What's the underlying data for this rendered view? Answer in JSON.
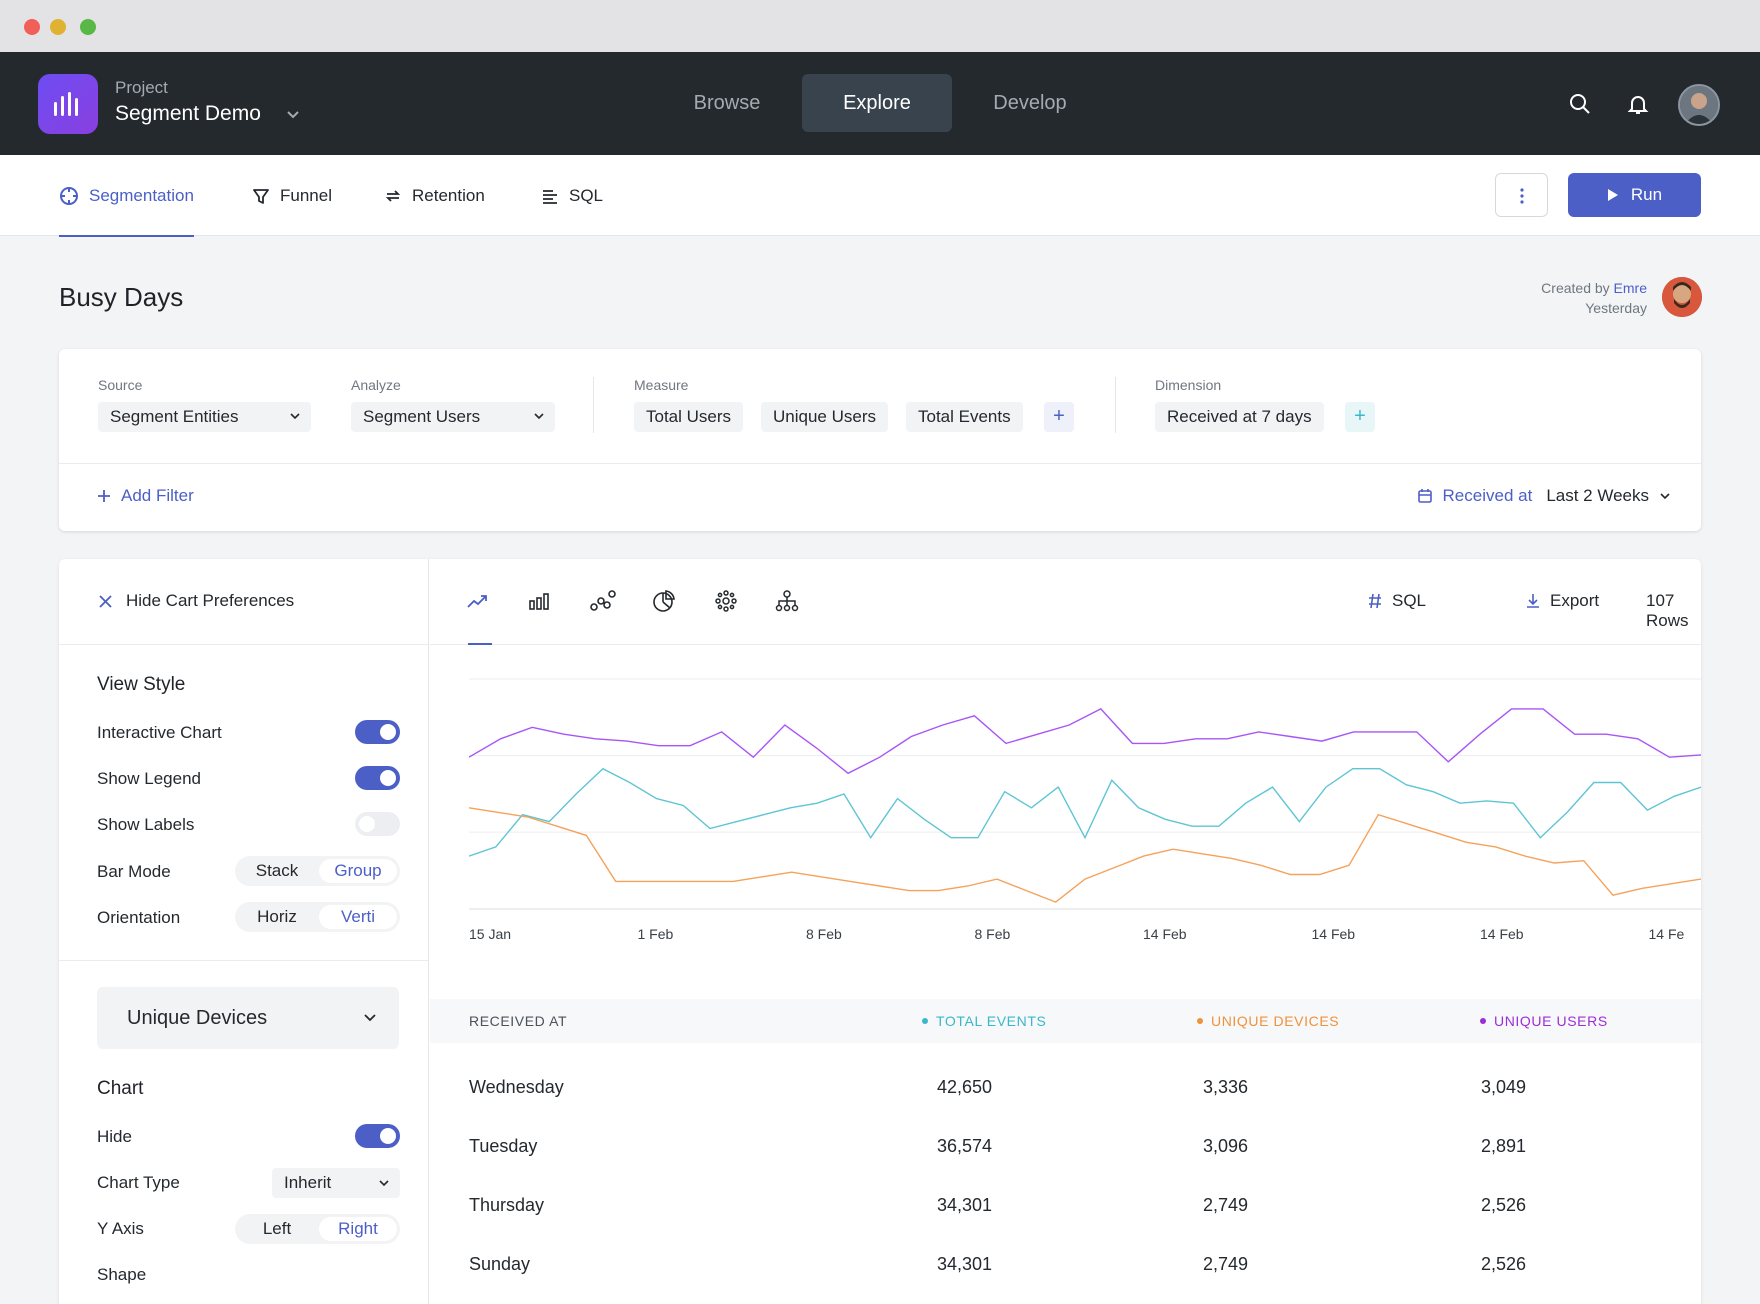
{
  "header": {
    "project_label": "Project",
    "project_name": "Segment Demo",
    "nav_tabs": [
      {
        "label": "Browse"
      },
      {
        "label": "Explore"
      },
      {
        "label": "Develop"
      }
    ]
  },
  "subnav": {
    "tabs": [
      {
        "label": "Segmentation"
      },
      {
        "label": "Funnel"
      },
      {
        "label": "Retention"
      },
      {
        "label": "SQL"
      }
    ],
    "run_label": "Run"
  },
  "page": {
    "title": "Busy Days",
    "created_by_prefix": "Created by",
    "created_by_author": "Emre",
    "created_when": "Yesterday"
  },
  "query": {
    "source_label": "Source",
    "source_value": "Segment Entities",
    "analyze_label": "Analyze",
    "analyze_value": "Segment Users",
    "measure_label": "Measure",
    "measures": [
      "Total Users",
      "Unique Users",
      "Total Events"
    ],
    "dimension_label": "Dimension",
    "dimension_value": "Received at 7 days",
    "add_filter": "Add Filter",
    "date_field": "Received at",
    "date_range": "Last 2 Weeks"
  },
  "left_panel": {
    "hide_cart": "Hide Cart Preferences",
    "view_style_title": "View Style",
    "interactive_chart": {
      "label": "Interactive Chart",
      "on": true
    },
    "show_legend": {
      "label": "Show Legend",
      "on": true
    },
    "show_labels": {
      "label": "Show Labels",
      "on": false
    },
    "bar_mode": {
      "label": "Bar Mode",
      "options": [
        "Stack",
        "Group"
      ],
      "selected": "Group"
    },
    "orientation": {
      "label": "Orientation",
      "options": [
        "Horiz",
        "Verti"
      ],
      "selected": "Verti"
    },
    "series_select": "Unique Devices",
    "chart_title": "Chart",
    "hide": {
      "label": "Hide",
      "on": true
    },
    "chart_type": {
      "label": "Chart Type",
      "value": "Inherit"
    },
    "y_axis": {
      "label": "Y Axis",
      "options": [
        "Left",
        "Right"
      ],
      "selected": "Right"
    },
    "shape_label": "Shape"
  },
  "toolbar": {
    "sql_label": "SQL",
    "export_label": "Export",
    "rows_label": "107 Rows"
  },
  "chart_data": {
    "type": "line",
    "x_labels": [
      "15 Jan",
      "1 Feb",
      "8 Feb",
      "8 Feb",
      "14 Feb",
      "14 Feb",
      "14 Feb",
      "14 Fe"
    ],
    "grid": true,
    "series": [
      {
        "color": "#a855f7",
        "values": [
          66,
          74,
          79,
          76,
          74,
          73,
          71,
          71,
          77,
          66,
          80,
          70,
          59,
          66,
          75,
          80,
          84,
          72,
          76,
          80,
          87,
          72,
          72,
          74,
          74,
          77,
          75,
          73,
          77,
          77,
          77,
          64,
          76,
          87,
          87,
          76,
          76,
          74,
          66,
          67
        ]
      },
      {
        "color": "#5ec5d4",
        "values": [
          23,
          27,
          41,
          38,
          50,
          61,
          55,
          48,
          45,
          35,
          38,
          41,
          44,
          46,
          50,
          31,
          48,
          39,
          31,
          31,
          51,
          44,
          53,
          31,
          56,
          44,
          39,
          36,
          36,
          46,
          53,
          38,
          53,
          61,
          61,
          54,
          51,
          46,
          47,
          46,
          31,
          42,
          55,
          55,
          43,
          49,
          53
        ]
      },
      {
        "color": "#f5a25b",
        "values": [
          44,
          42,
          40,
          36,
          32,
          12,
          12,
          12,
          12,
          12,
          14,
          16,
          14,
          12,
          10,
          8,
          8,
          10,
          13,
          8,
          3,
          13,
          18,
          23,
          26,
          24,
          22,
          19,
          15,
          15,
          19,
          41,
          37,
          33,
          29,
          27,
          23,
          20,
          21,
          6,
          9,
          11,
          13
        ]
      }
    ]
  },
  "table": {
    "columns": [
      {
        "label": "RECEIVED AT",
        "color": ""
      },
      {
        "label": "TOTAL EVENTS",
        "color": "#3ab7c8"
      },
      {
        "label": "UNIQUE DEVICES",
        "color": "#f0923a"
      },
      {
        "label": "UNIQUE USERS",
        "color": "#9b2fd6"
      }
    ],
    "rows": [
      [
        "Wednesday",
        "42,650",
        "3,336",
        "3,049"
      ],
      [
        "Tuesday",
        "36,574",
        "3,096",
        "2,891"
      ],
      [
        "Thursday",
        "34,301",
        "2,749",
        "2,526"
      ],
      [
        "Sunday",
        "34,301",
        "2,749",
        "2,526"
      ]
    ]
  }
}
